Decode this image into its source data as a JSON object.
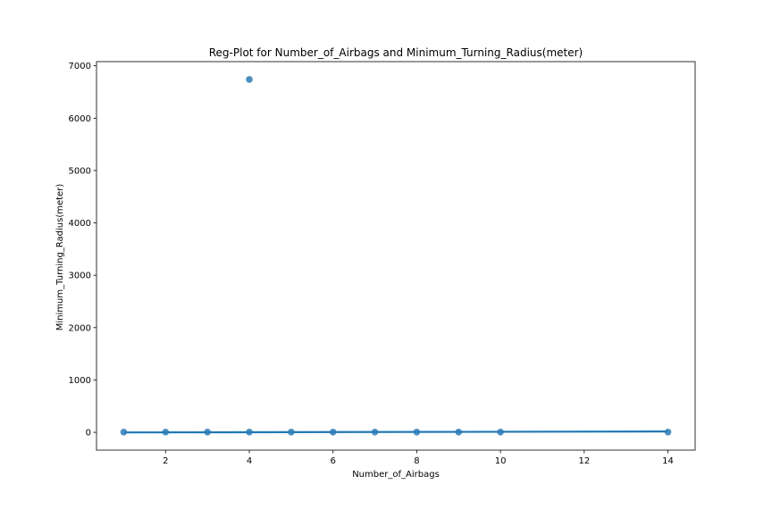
{
  "chart_data": {
    "type": "scatter",
    "title": "Reg-Plot for Number_of_Airbags and Minimum_Turning_Radius(meter)",
    "xlabel": "Number_of_Airbags",
    "ylabel": "Minimum_Turning_Radius(meter)",
    "xlim": [
      0.35,
      14.65
    ],
    "ylim": [
      -340,
      7080
    ],
    "xticks": [
      2,
      4,
      6,
      8,
      10,
      12,
      14
    ],
    "yticks": [
      0,
      1000,
      2000,
      3000,
      4000,
      5000,
      6000,
      7000
    ],
    "points": [
      {
        "x": 1,
        "y": 5
      },
      {
        "x": 2,
        "y": 5
      },
      {
        "x": 3,
        "y": 5
      },
      {
        "x": 4,
        "y": 5
      },
      {
        "x": 4,
        "y": 6740
      },
      {
        "x": 5,
        "y": 5
      },
      {
        "x": 6,
        "y": 5
      },
      {
        "x": 7,
        "y": 5
      },
      {
        "x": 8,
        "y": 5
      },
      {
        "x": 9,
        "y": 5
      },
      {
        "x": 10,
        "y": 5
      },
      {
        "x": 14,
        "y": 5
      }
    ],
    "regression_line": {
      "x": [
        1,
        14
      ],
      "y": [
        -2,
        16
      ]
    },
    "grid": false,
    "colors": {
      "points": "#2c7bb6",
      "line": "#1f77b4",
      "axes": "#000000"
    }
  }
}
